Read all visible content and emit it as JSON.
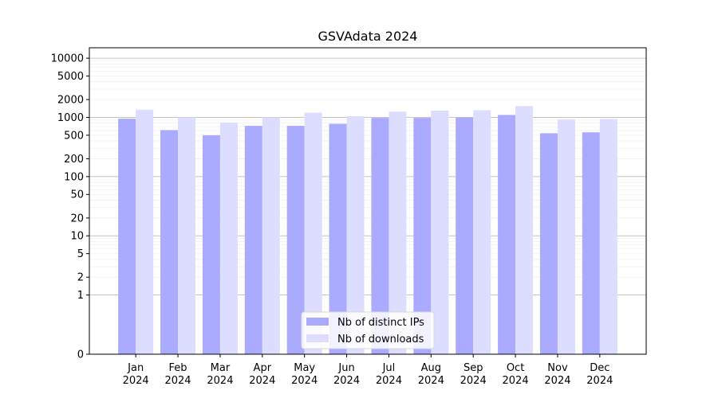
{
  "chart_data": {
    "type": "bar",
    "title": "GSVAdata 2024",
    "xlabel": "",
    "ylabel": "",
    "y_scale": "symlog",
    "ylim": [
      0,
      15000
    ],
    "y_ticks": [
      0,
      1,
      2,
      5,
      10,
      20,
      50,
      100,
      200,
      500,
      1000,
      2000,
      5000,
      10000
    ],
    "y_tick_labels": [
      "0",
      "1",
      "2",
      "5",
      "10",
      "20",
      "50",
      "100",
      "200",
      "500",
      "1000",
      "2000",
      "5000",
      "10000"
    ],
    "categories": [
      "Jan\n2024",
      "Feb\n2024",
      "Mar\n2024",
      "Apr\n2024",
      "May\n2024",
      "Jun\n2024",
      "Jul\n2024",
      "Aug\n2024",
      "Sep\n2024",
      "Oct\n2024",
      "Nov\n2024",
      "Dec\n2024"
    ],
    "series": [
      {
        "name": "Nb of distinct IPs",
        "color": "#aaaaff",
        "values": [
          950,
          610,
          500,
          720,
          720,
          780,
          980,
          980,
          1000,
          1100,
          540,
          560
        ]
      },
      {
        "name": "Nb of downloads",
        "color": "#ddddff",
        "values": [
          1350,
          1000,
          820,
          1000,
          1200,
          1050,
          1250,
          1300,
          1320,
          1550,
          920,
          940
        ]
      }
    ],
    "grid": true,
    "legend_position": "lower-center"
  }
}
